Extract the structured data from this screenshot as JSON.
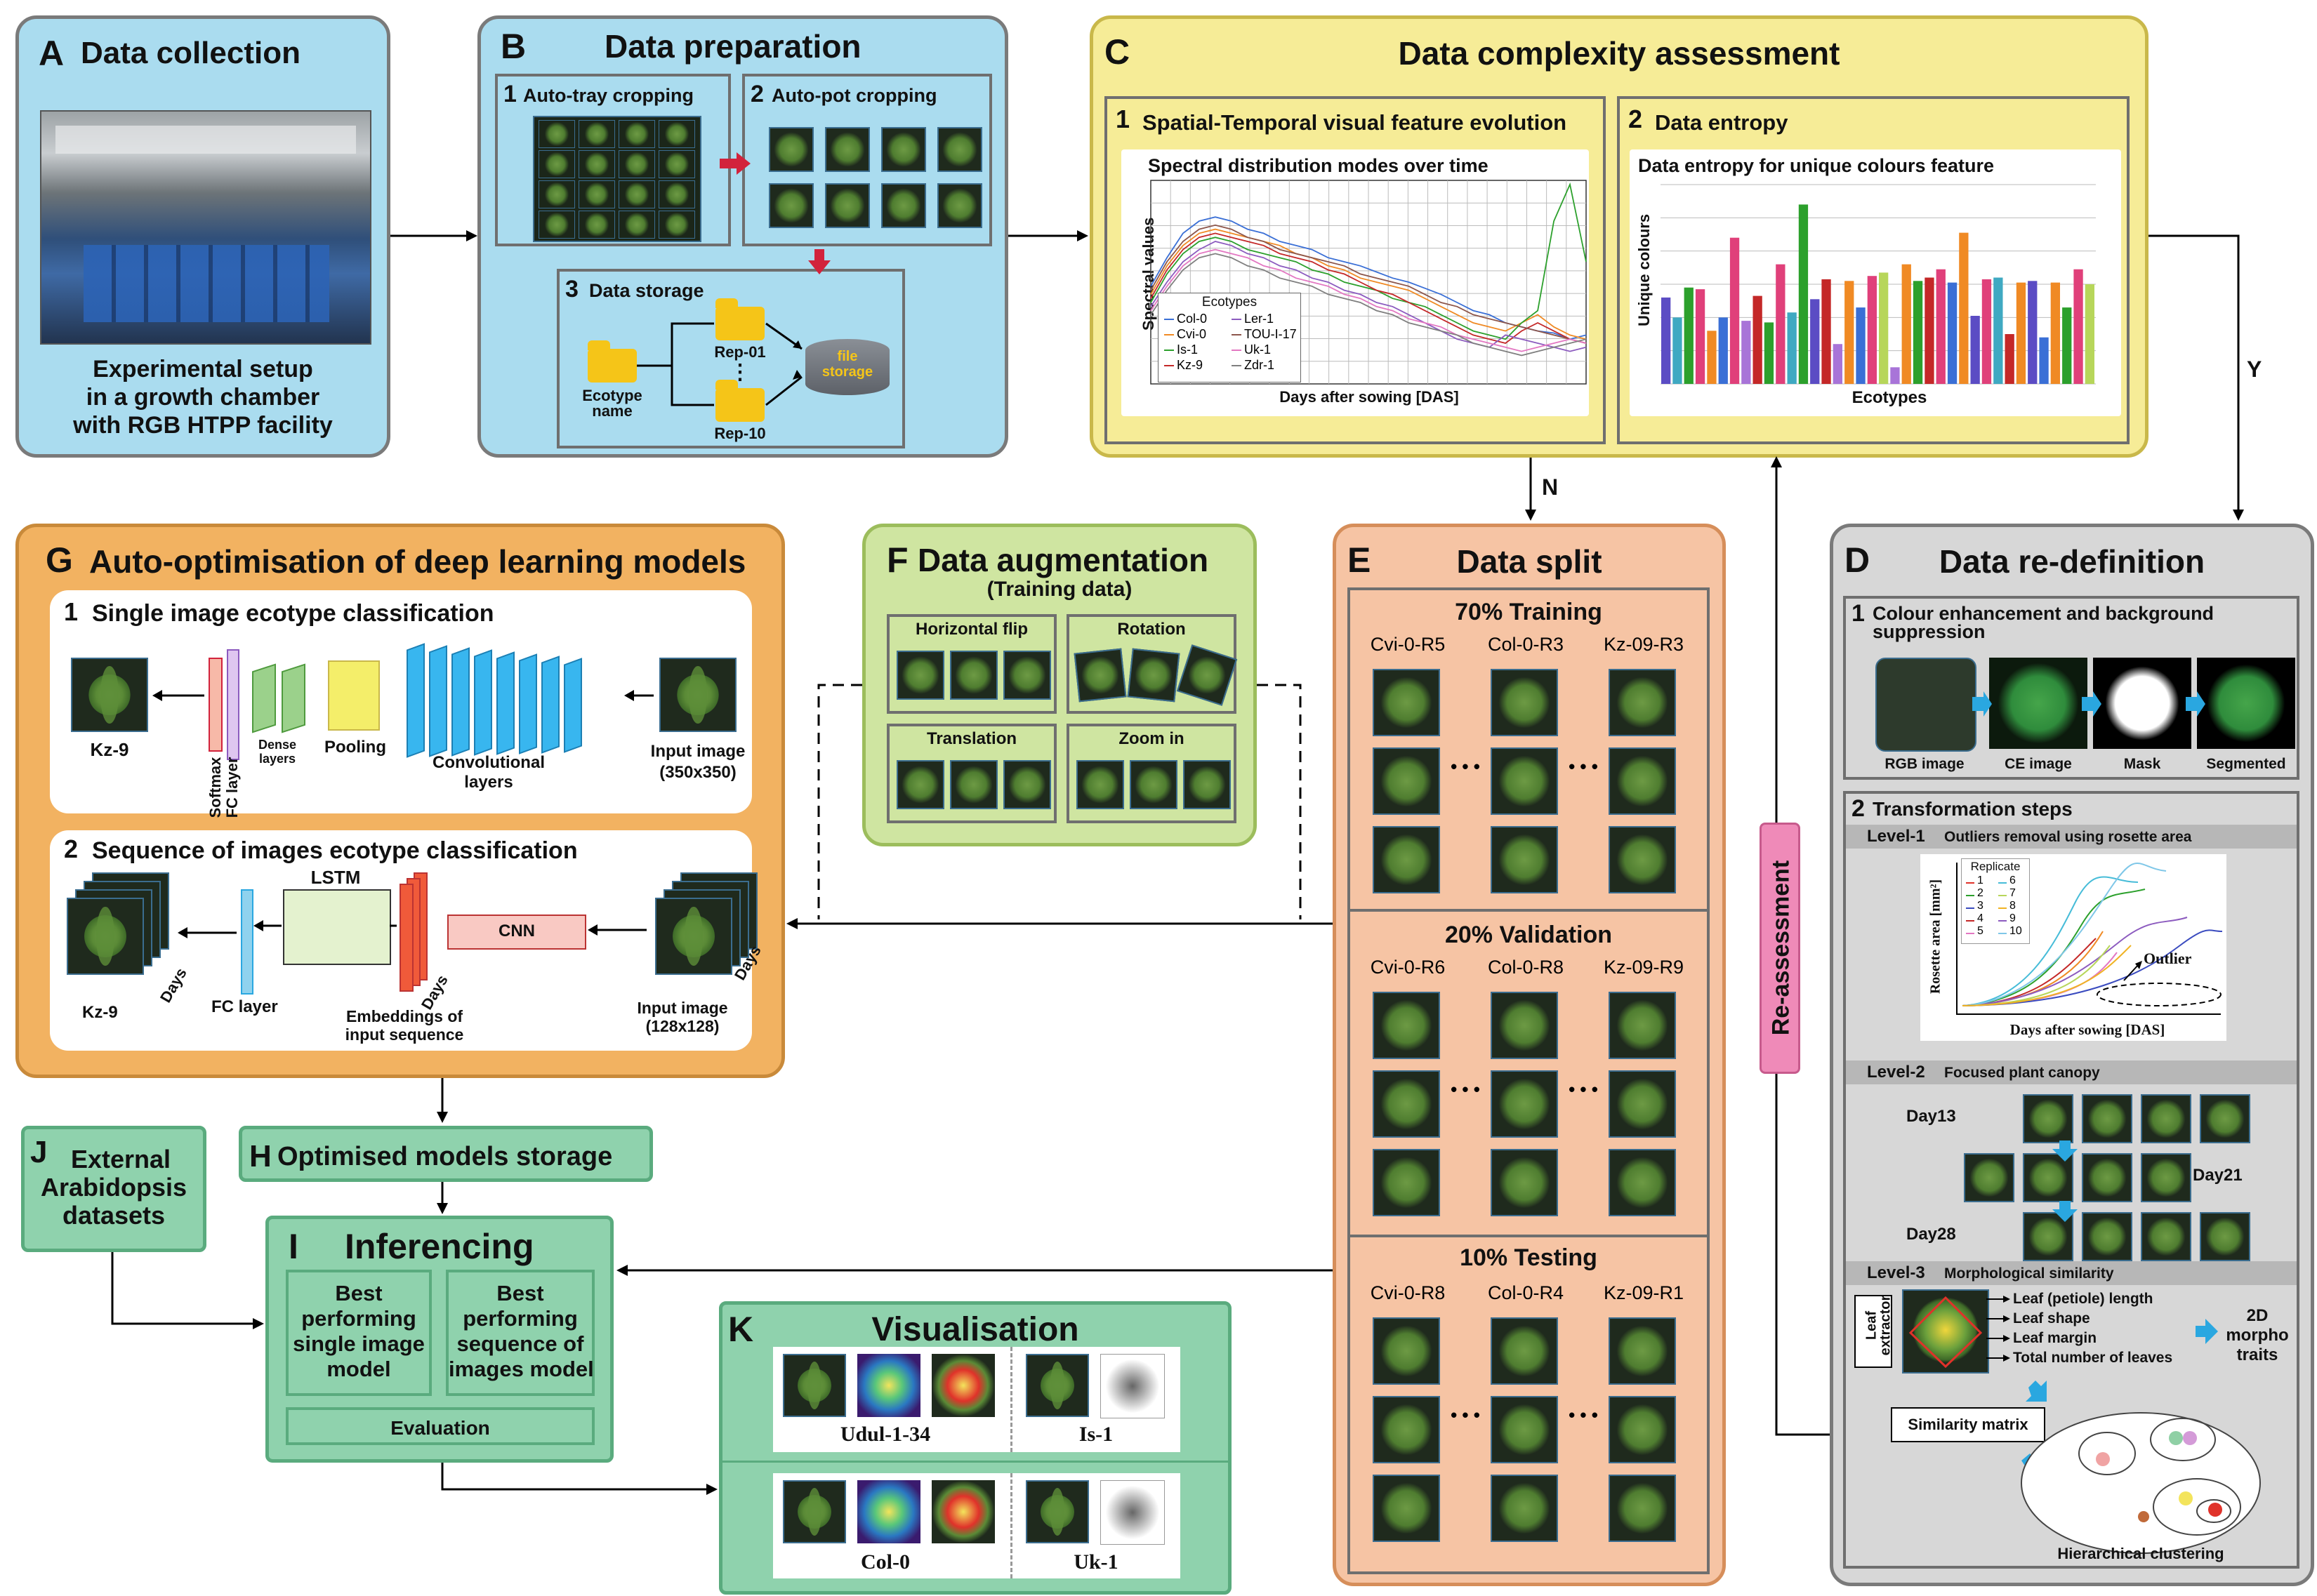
{
  "A": {
    "letter": "A",
    "title": "Data collection",
    "caption": [
      "Experimental setup",
      "in a growth chamber",
      "with RGB HTPP facility"
    ]
  },
  "B": {
    "letter": "B",
    "title": "Data preparation",
    "s1": {
      "num": "1",
      "title": "Auto-tray cropping"
    },
    "s2": {
      "num": "2",
      "title": "Auto-pot cropping"
    },
    "s3": {
      "num": "3",
      "title": "Data storage"
    },
    "ecotype_name": [
      "Ecotype",
      "name"
    ],
    "rep01": "Rep-01",
    "dots": "⋮",
    "rep10": "Rep-10",
    "file_storage": [
      "file",
      "storage"
    ]
  },
  "C": {
    "letter": "C",
    "title": "Data complexity assessment",
    "s1": {
      "num": "1",
      "title": "Spatial-Temporal visual feature evolution"
    },
    "s2": {
      "num": "2",
      "title": "Data entropy"
    }
  },
  "line_chart": {
    "title": "Spectral distribution modes over time",
    "ylabel": "Spectral values",
    "xlabel": "Days after sowing [DAS]",
    "legend_title": "Ecotypes"
  },
  "bar_chart": {
    "title": "Data entropy for unique colours feature",
    "ylabel": "Unique colours",
    "xlabel": "Ecotypes"
  },
  "chart_data": [
    {
      "type": "line",
      "title": "Spectral distribution modes over time",
      "xlabel": "Days after sowing [DAS]",
      "ylabel": "Spectral values",
      "legend_title": "Ecotypes",
      "grid": true,
      "legend_placement": "bottom-left",
      "series": [
        {
          "name": "Col-0",
          "color": "#3a6fd6",
          "values": [
            48,
            62,
            74,
            80,
            82,
            80,
            76,
            74,
            70,
            68,
            66,
            62,
            60,
            58,
            55,
            52,
            50,
            47,
            44,
            40,
            36,
            34,
            30,
            28,
            26,
            25,
            22,
            24
          ]
        },
        {
          "name": "Cvi-0",
          "color": "#f08a24",
          "values": [
            44,
            58,
            68,
            74,
            76,
            74,
            72,
            70,
            68,
            64,
            62,
            58,
            56,
            52,
            50,
            48,
            46,
            42,
            38,
            34,
            30,
            28,
            26,
            30,
            34,
            28,
            24,
            22
          ]
        },
        {
          "name": "Is-1",
          "color": "#2ca02c",
          "values": [
            40,
            54,
            64,
            70,
            72,
            70,
            66,
            64,
            62,
            60,
            56,
            54,
            50,
            48,
            46,
            42,
            40,
            38,
            34,
            30,
            26,
            24,
            22,
            30,
            36,
            80,
            98,
            60
          ]
        },
        {
          "name": "Kz-9",
          "color": "#c42828",
          "values": [
            42,
            56,
            66,
            72,
            74,
            72,
            70,
            68,
            64,
            62,
            60,
            56,
            54,
            50,
            46,
            44,
            40,
            36,
            32,
            28,
            24,
            22,
            20,
            26,
            30,
            26,
            22,
            20
          ]
        },
        {
          "name": "Ler-1",
          "color": "#8c5bbf",
          "values": [
            38,
            50,
            60,
            66,
            70,
            68,
            64,
            62,
            58,
            56,
            52,
            50,
            46,
            44,
            40,
            38,
            34,
            30,
            26,
            22,
            20,
            18,
            24,
            22,
            20,
            18,
            16,
            18
          ]
        },
        {
          "name": "TOU-I-17",
          "color": "#8c564b",
          "values": [
            46,
            60,
            70,
            76,
            78,
            76,
            72,
            70,
            66,
            64,
            62,
            60,
            58,
            54,
            52,
            50,
            48,
            44,
            40,
            38,
            34,
            32,
            30,
            28,
            26,
            24,
            22,
            20
          ]
        },
        {
          "name": "Uk-1",
          "color": "#e377c2",
          "values": [
            36,
            48,
            58,
            64,
            66,
            64,
            62,
            58,
            56,
            52,
            50,
            48,
            44,
            42,
            38,
            36,
            32,
            30,
            28,
            24,
            22,
            20,
            18,
            16,
            18,
            20,
            22,
            20
          ]
        },
        {
          "name": "Zdr-1",
          "color": "#7f7f7f",
          "values": [
            34,
            46,
            56,
            62,
            64,
            62,
            58,
            56,
            52,
            50,
            48,
            44,
            42,
            40,
            36,
            34,
            30,
            28,
            26,
            24,
            20,
            18,
            16,
            14,
            16,
            18,
            20,
            22
          ]
        }
      ]
    },
    {
      "type": "bar",
      "title": "Data entropy for unique colours feature",
      "xlabel": "Ecotypes",
      "ylabel": "Unique colours",
      "grid": true,
      "values": [
        52,
        40,
        58,
        57,
        32,
        40,
        88,
        38,
        53,
        37,
        72,
        43,
        108,
        51,
        63,
        24,
        62,
        46,
        65,
        67,
        10,
        72,
        62,
        64,
        69,
        61,
        91,
        41,
        63,
        64,
        30,
        61,
        62,
        28,
        61,
        46,
        69,
        60
      ],
      "colors": [
        "#5b4cc4",
        "#3fa9c2",
        "#2ca02c",
        "#e0407a",
        "#f08a24",
        "#3a6fd6",
        "#e0407a",
        "#a874d8",
        "#c42828",
        "#2ca02c",
        "#e0407a",
        "#3fa9c2",
        "#2ca02c",
        "#5b4cc4",
        "#c42828",
        "#a874d8",
        "#f08a24",
        "#3a6fd6",
        "#e0407a",
        "#b7d65a",
        "#a874d8",
        "#f08a24",
        "#2ca02c",
        "#c42828",
        "#e0407a",
        "#3a6fd6",
        "#f08a24",
        "#5b4cc4",
        "#e0407a",
        "#3fa9c2",
        "#c42828",
        "#f08a24",
        "#5b4cc4",
        "#3a6fd6",
        "#f08a24",
        "#2ca02c",
        "#e0407a",
        "#b7d65a"
      ]
    }
  ],
  "legend_rows": [
    [
      "Col-0",
      "Ler-1"
    ],
    [
      "Cvi-0",
      "TOU-I-17"
    ],
    [
      "Is-1",
      "Uk-1"
    ],
    [
      "Kz-9",
      "Zdr-1"
    ]
  ],
  "D": {
    "letter": "D",
    "title": "Data re-definition",
    "s1": {
      "num": "1",
      "title": [
        "Colour enhancement and background",
        "suppression"
      ]
    },
    "img_labels": [
      "RGB image",
      "CE image",
      "Mask",
      "Segmented"
    ],
    "s2": {
      "num": "2",
      "title": "Transformation steps"
    },
    "level1": {
      "tag": "Level-1",
      "text": "Outliers removal using rosette area"
    },
    "level1_chart": {
      "ylabel": "Rosette area [mm²]",
      "xlabel": "Days after sowing [DAS]",
      "legend_title": "Replicate",
      "outlier": "Outlier",
      "legend": [
        [
          "1",
          "6"
        ],
        [
          "2",
          "7"
        ],
        [
          "3",
          "8"
        ],
        [
          "4",
          "9"
        ],
        [
          "5",
          "10"
        ]
      ]
    },
    "level2": {
      "tag": "Level-2",
      "text": "Focused plant canopy",
      "day13": "Day13",
      "day21": "Day21",
      "day28": "Day28"
    },
    "level3": {
      "tag": "Level-3",
      "text": "Morphological similarity",
      "extractor": [
        "Leaf",
        "extractor"
      ],
      "traits": [
        "Leaf (petiole) length",
        "Leaf shape",
        "Leaf margin",
        "Total number of leaves"
      ],
      "traits_2d": [
        "2D",
        "morpho",
        "traits"
      ],
      "similarity": "Similarity matrix",
      "clustering": "Hierarchical clustering"
    }
  },
  "E": {
    "letter": "E",
    "title": "Data split",
    "training": {
      "title": "70% Training",
      "cols": [
        "Cvi-0-R5",
        "Col-0-R3",
        "Kz-09-R3"
      ]
    },
    "validation": {
      "title": "20% Validation",
      "cols": [
        "Cvi-0-R6",
        "Col-0-R8",
        "Kz-09-R9"
      ]
    },
    "testing": {
      "title": "10% Testing",
      "cols": [
        "Cvi-0-R8",
        "Col-0-R4",
        "Kz-09-R1"
      ]
    },
    "ellipsis": "• • •"
  },
  "F": {
    "letter": "F",
    "title": "Data augmentation",
    "subtitle": "(Training data)",
    "cells": [
      "Horizontal flip",
      "Rotation",
      "Translation",
      "Zoom in"
    ]
  },
  "G": {
    "letter": "G",
    "title": "Auto-optimisation of deep learning models",
    "s1": {
      "num": "1",
      "title": "Single image ecotype classification",
      "out": "Kz-9",
      "softmax": "Softmax",
      "fc": "FC layer",
      "dense": [
        "Dense",
        "layers"
      ],
      "pooling": "Pooling",
      "conv": [
        "Convolutional",
        "layers"
      ],
      "input": [
        "Input image",
        "(350x350)"
      ]
    },
    "s2": {
      "num": "2",
      "title": "Sequence of images ecotype classification",
      "out": "Kz-9",
      "days": "Days",
      "fc": "FC layer",
      "lstm": "LSTM",
      "emb": [
        "Embeddings of",
        "input sequence"
      ],
      "cnn": "CNN",
      "input": [
        "Input image",
        "(128x128)"
      ]
    }
  },
  "H": {
    "letter": "H",
    "title": "Optimised models storage"
  },
  "I": {
    "letter": "I",
    "title": "Inferencing",
    "best1": [
      "Best",
      "performing",
      "single image",
      "model"
    ],
    "best2": [
      "Best",
      "performing",
      "sequence of",
      "images model"
    ],
    "eval": "Evaluation"
  },
  "J": {
    "letter": "J",
    "title": [
      "External",
      "Arabidopsis",
      "datasets"
    ]
  },
  "K": {
    "letter": "K",
    "title": "Visualisation",
    "labels": [
      "Udul-1-34",
      "Is-1",
      "Col-0",
      "Uk-1"
    ]
  },
  "arrows": {
    "Y": "Y",
    "N": "N",
    "reassess": "Re-assessment"
  }
}
